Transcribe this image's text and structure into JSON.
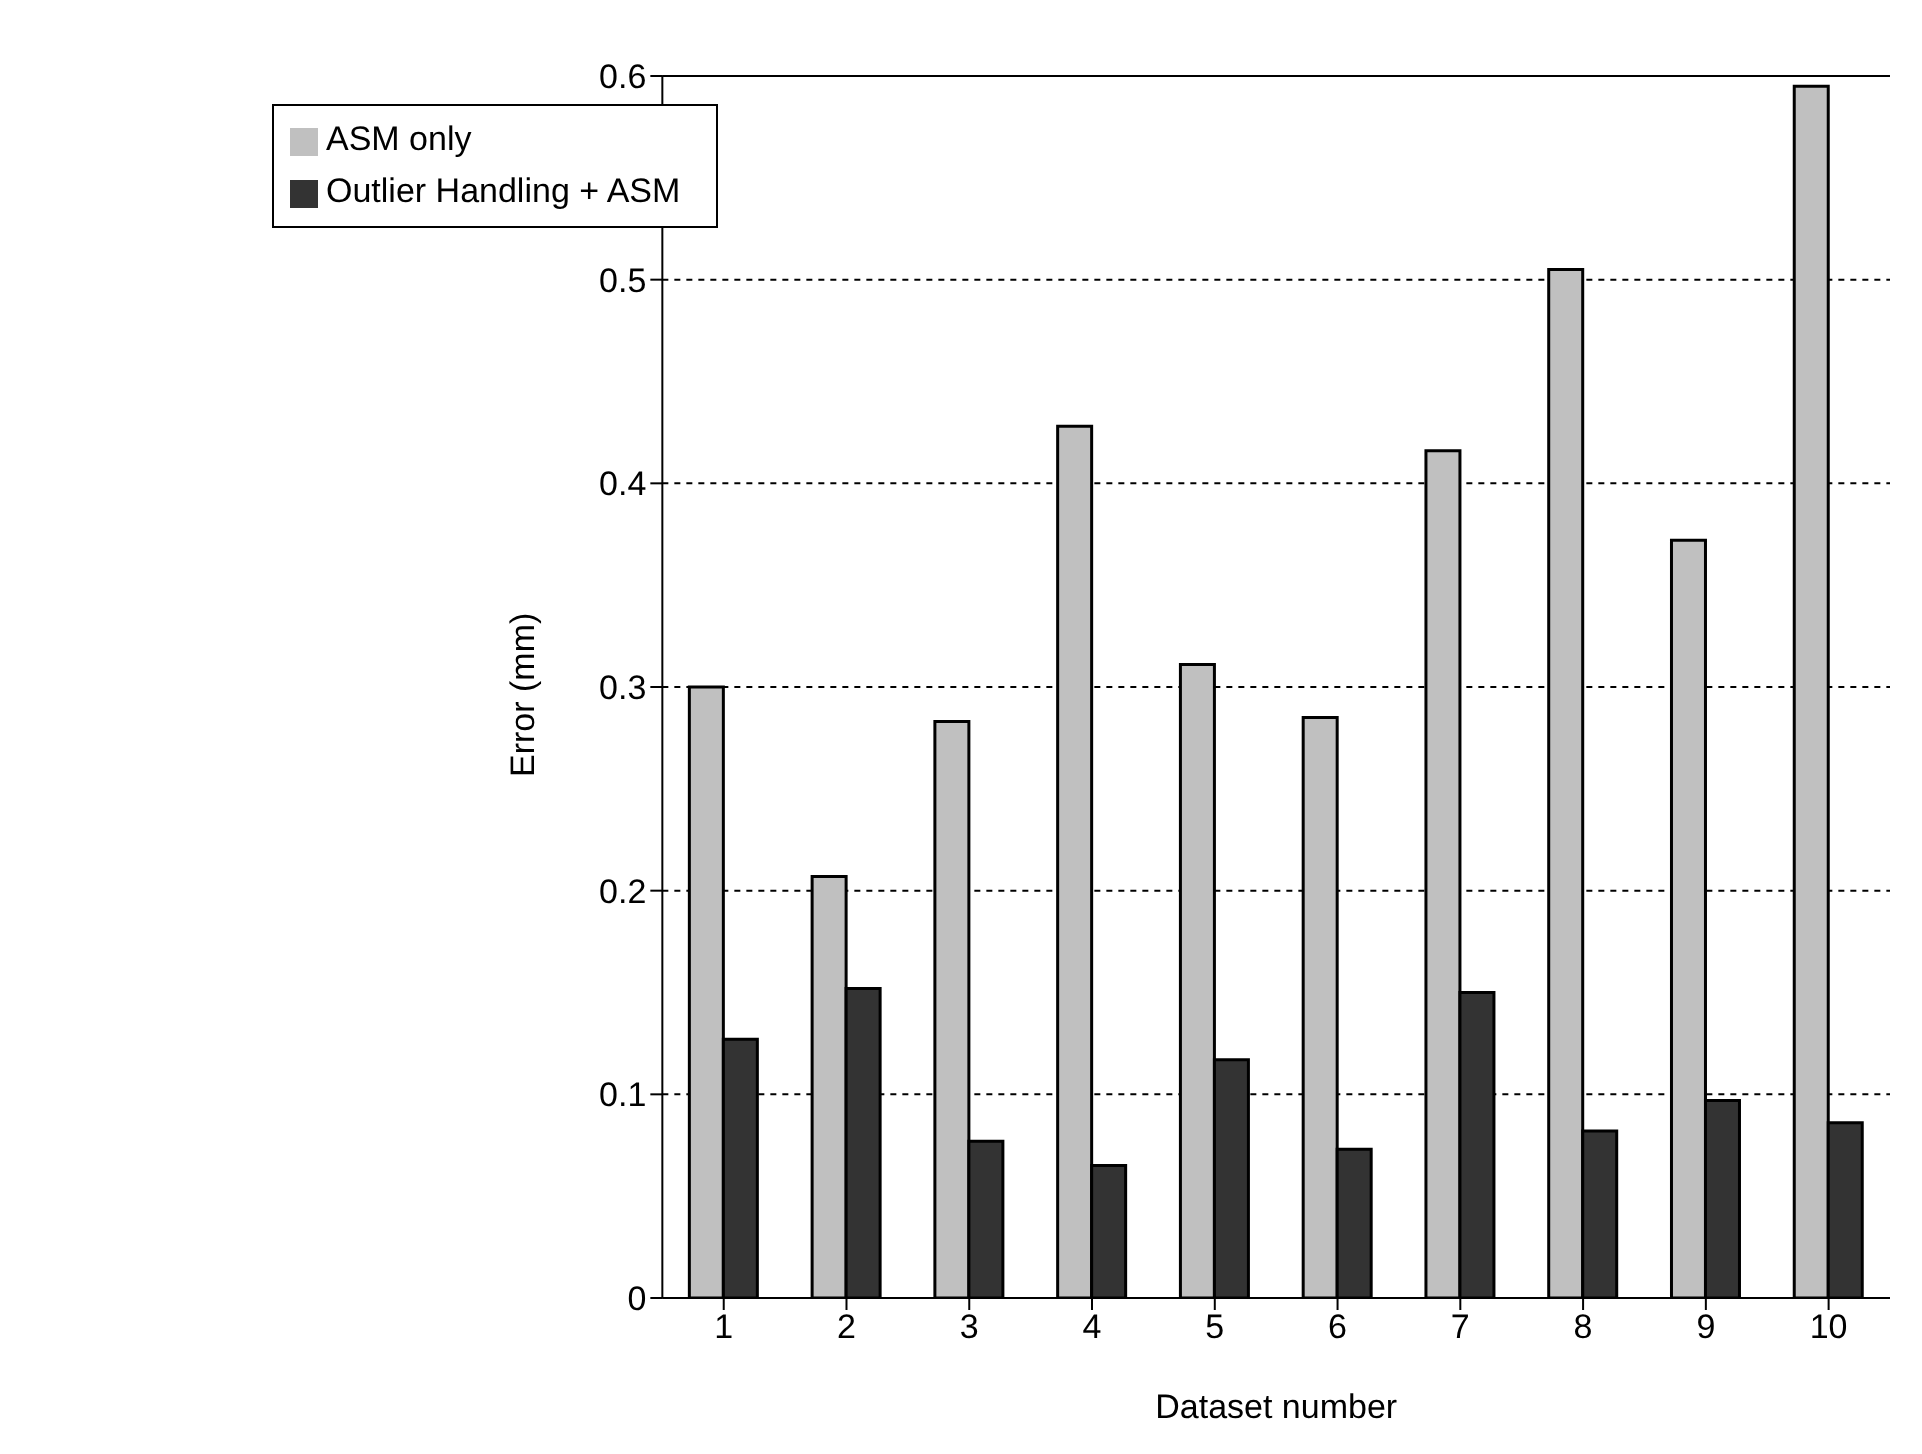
{
  "chart_data": {
    "type": "bar",
    "xlabel": "Dataset number",
    "ylabel": "Error (mm)",
    "categories": [
      "1",
      "2",
      "3",
      "4",
      "5",
      "6",
      "7",
      "8",
      "9",
      "10"
    ],
    "series": [
      {
        "name": "ASM only",
        "color": "#c0c0c0",
        "values": [
          0.3,
          0.207,
          0.283,
          0.428,
          0.311,
          0.285,
          0.416,
          0.505,
          0.372,
          0.595
        ]
      },
      {
        "name": "Outlier Handling + ASM",
        "color": "#333333",
        "values": [
          0.127,
          0.152,
          0.077,
          0.065,
          0.117,
          0.073,
          0.15,
          0.082,
          0.097,
          0.086
        ]
      }
    ],
    "ylim": [
      0,
      0.6
    ],
    "yticks": [
      0,
      0.1,
      0.2,
      0.3,
      0.4,
      0.5,
      0.6
    ],
    "grid": "y",
    "legend": "top left"
  }
}
